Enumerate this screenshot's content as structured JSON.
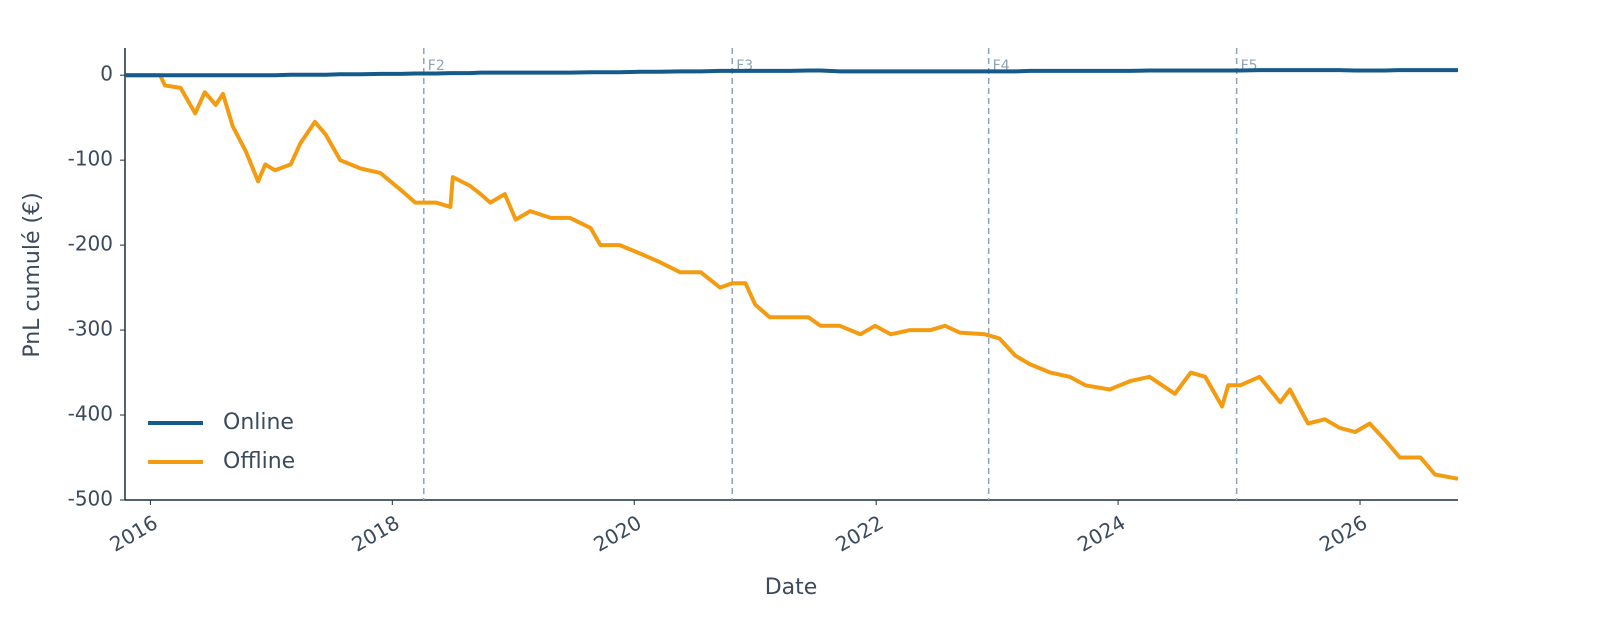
{
  "chart_data": {
    "type": "line",
    "x_label": "Date",
    "y_label": "PnL cumulé (€)",
    "x": [
      2015.79,
      2016.08,
      2016.12,
      2016.25,
      2016.37,
      2016.45,
      2016.54,
      2016.6,
      2016.68,
      2016.79,
      2016.89,
      2016.95,
      2017.03,
      2017.16,
      2017.24,
      2017.36,
      2017.45,
      2017.57,
      2017.74,
      2017.9,
      2018.07,
      2018.19,
      2018.36,
      2018.48,
      2018.5,
      2018.64,
      2018.73,
      2018.81,
      2018.93,
      2019.02,
      2019.14,
      2019.31,
      2019.47,
      2019.64,
      2019.72,
      2019.88,
      2020.05,
      2020.21,
      2020.38,
      2020.55,
      2020.71,
      2020.81,
      2020.92,
      2021.0,
      2021.12,
      2021.29,
      2021.44,
      2021.54,
      2021.7,
      2021.87,
      2021.99,
      2022.12,
      2022.28,
      2022.45,
      2022.57,
      2022.69,
      2022.9,
      2023.02,
      2023.15,
      2023.27,
      2023.44,
      2023.6,
      2023.73,
      2023.93,
      2024.1,
      2024.26,
      2024.47,
      2024.6,
      2024.72,
      2024.86,
      2024.91,
      2025.01,
      2025.17,
      2025.34,
      2025.42,
      2025.57,
      2025.71,
      2025.83,
      2025.96,
      2026.08,
      2026.21,
      2026.33,
      2026.5,
      2026.62,
      2026.81
    ],
    "series": [
      {
        "name": "Online",
        "color": "#155a8a",
        "values": [
          0,
          0,
          0,
          0,
          0,
          0,
          0,
          0,
          0,
          0,
          0,
          0,
          0,
          0.5,
          0.5,
          0.5,
          0.5,
          1,
          1,
          1.5,
          1.5,
          2,
          2,
          2.5,
          2.5,
          2.5,
          3,
          3,
          3,
          3,
          3,
          3,
          3,
          3.5,
          3.5,
          3.5,
          4,
          4,
          4.5,
          4.5,
          5,
          5,
          5,
          5,
          5,
          5,
          5.5,
          5.5,
          4.5,
          4.5,
          4.5,
          4.5,
          4.5,
          4.5,
          4.5,
          4.5,
          4.5,
          4.5,
          4.5,
          5,
          5,
          5,
          5,
          5,
          5,
          5.5,
          5.5,
          5.5,
          5.5,
          5.5,
          5.5,
          5.5,
          6,
          6,
          6,
          6,
          6,
          6,
          5.5,
          5.5,
          5.5,
          6,
          6,
          6,
          6
        ]
      },
      {
        "name": "Offline",
        "color": "#f39c12",
        "values": [
          0,
          0,
          -12,
          -15,
          -45,
          -20,
          -35,
          -22,
          -60,
          -90,
          -125,
          -105,
          -112,
          -105,
          -80,
          -55,
          -70,
          -100,
          -110,
          -115,
          -135,
          -150,
          -150,
          -155,
          -120,
          -130,
          -140,
          -150,
          -140,
          -170,
          -160,
          -168,
          -168,
          -180,
          -200,
          -200,
          -210,
          -220,
          -232,
          -232,
          -250,
          -245,
          -245,
          -270,
          -285,
          -285,
          -285,
          -295,
          -295,
          -305,
          -295,
          -305,
          -300,
          -300,
          -295,
          -303,
          -305,
          -310,
          -330,
          -340,
          -350,
          -355,
          -365,
          -370,
          -360,
          -355,
          -375,
          -350,
          -355,
          -390,
          -365,
          -365,
          -355,
          -385,
          -370,
          -410,
          -405,
          -415,
          -420,
          -410,
          -430,
          -450,
          -450,
          -470,
          -475
        ]
      }
    ],
    "events": [
      {
        "x": 2018.26,
        "label": "F2"
      },
      {
        "x": 2020.81,
        "label": "F3"
      },
      {
        "x": 2022.93,
        "label": "F4"
      },
      {
        "x": 2024.98,
        "label": "F5"
      }
    ],
    "xlim": [
      2015.79,
      2026.81
    ],
    "xticks": [
      2016,
      2018,
      2020,
      2022,
      2024,
      2026
    ],
    "ylim": [
      -500,
      32
    ],
    "yticks": [
      0,
      -100,
      -200,
      -300,
      -400,
      -500
    ],
    "legend": "lower left",
    "grid": false
  }
}
